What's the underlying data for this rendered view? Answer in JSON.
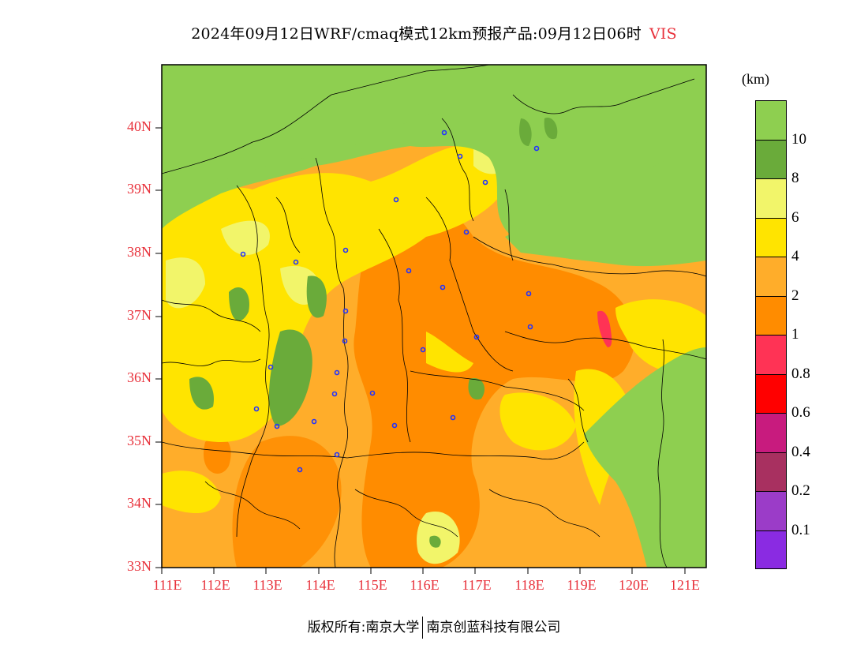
{
  "title": {
    "main": "2024年09月12日WRF/cmaq模式12km预报产品:09月12日06时",
    "variable": "VIS"
  },
  "axes": {
    "lat_labels": [
      "40N",
      "39N",
      "38N",
      "37N",
      "36N",
      "35N",
      "34N",
      "33N"
    ],
    "lon_labels": [
      "111E",
      "112E",
      "113E",
      "114E",
      "115E",
      "116E",
      "117E",
      "118E",
      "119E",
      "120E",
      "121E"
    ]
  },
  "colorbar": {
    "unit": "(km)",
    "labels": [
      "10",
      "8",
      "6",
      "4",
      "2",
      "1",
      "0.8",
      "0.6",
      "0.4",
      "0.2",
      "0.1"
    ],
    "colors": [
      "#8ecf50",
      "#6aab3a",
      "#f2f56a",
      "#ffe400",
      "#ffad2a",
      "#ff8c00",
      "#ff3355",
      "#ff0000",
      "#c81b7e",
      "#a83060",
      "#9b3cc8",
      "#8a2be2"
    ]
  },
  "footer": {
    "left": "版权所有:南京大学",
    "right": "南京创蓝科技有限公司"
  },
  "colors": {
    "axis_label": "#e8303a",
    "station_marker": "#2233ff"
  }
}
